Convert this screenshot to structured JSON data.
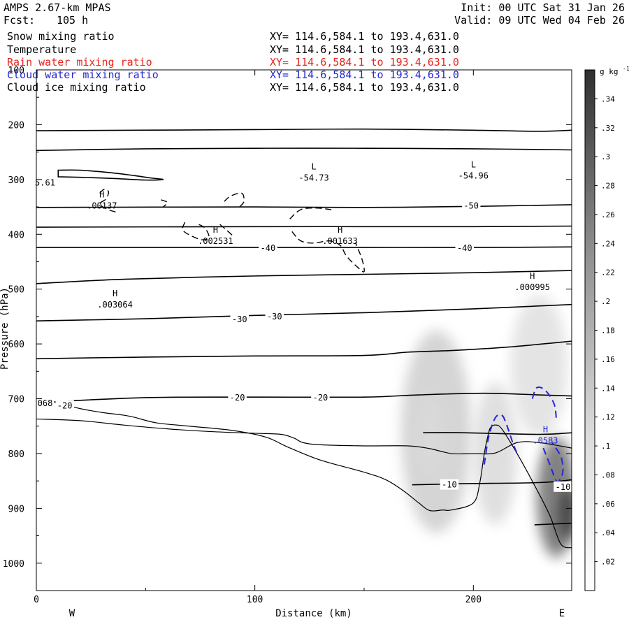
{
  "header": {
    "model": "AMPS 2.67-km MPAS",
    "fcst_label": "Fcst:",
    "fcst_value": "105 h",
    "init": "Init: 00 UTC Sat 31 Jan 26",
    "valid": "Valid: 09 UTC Wed 04 Feb 26"
  },
  "fields": [
    {
      "name": "Snow mixing ratio",
      "xy": "XY= 114.6,584.1 to 193.4,631.0",
      "color": "#000000"
    },
    {
      "name": "Temperature",
      "xy": "XY= 114.6,584.1 to 193.4,631.0",
      "color": "#000000"
    },
    {
      "name": "Rain water mixing ratio",
      "xy": "XY= 114.6,584.1 to 193.4,631.0",
      "color": "#e8241c"
    },
    {
      "name": "Cloud water mixing ratio",
      "xy": "XY= 114.6,584.1 to 193.4,631.0",
      "color": "#2626d6"
    },
    {
      "name": "Cloud ice mixing ratio",
      "xy": "XY= 114.6,584.1 to 193.4,631.0",
      "color": "#000000"
    }
  ],
  "chart_data": {
    "type": "cross-section",
    "xlabel": "Distance (km)",
    "ylabel": "Pressure (hPa)",
    "xlim": [
      0,
      245
    ],
    "ylim": [
      1050,
      100
    ],
    "x_ticks": [
      0,
      100,
      200
    ],
    "y_ticks": [
      200,
      300,
      400,
      500,
      600,
      700,
      800,
      900,
      1000
    ],
    "y_top_label": "100",
    "west_label": "W",
    "east_label": "E",
    "colorbar": {
      "unit": "g kg",
      "unit_exp": "-1",
      "ticks": [
        ".02",
        ".04",
        ".06",
        ".08",
        ".1",
        ".12",
        ".14",
        ".16",
        ".18",
        ".2",
        ".22",
        ".24",
        ".26",
        ".28",
        ".3",
        ".32",
        ".34"
      ],
      "tick_values": [
        0.02,
        0.04,
        0.06,
        0.08,
        0.1,
        0.12,
        0.14,
        0.16,
        0.18,
        0.2,
        0.22,
        0.24,
        0.26,
        0.28,
        0.3,
        0.32,
        0.34
      ],
      "range": [
        0,
        0.36
      ]
    },
    "snow_blobs": [
      {
        "x": 183,
        "p": 760,
        "rx": 16,
        "rp": 185,
        "value": 0.08
      },
      {
        "x": 180,
        "p": 770,
        "rx": 7,
        "rp": 75,
        "value": 0.06
      },
      {
        "x": 210,
        "p": 800,
        "rx": 10,
        "rp": 130,
        "value": 0.06
      },
      {
        "x": 230,
        "p": 640,
        "rx": 13,
        "rp": 130,
        "value": 0.05
      },
      {
        "x": 238,
        "p": 880,
        "rx": 9,
        "rp": 110,
        "value": 0.24
      },
      {
        "x": 243,
        "p": 910,
        "rx": 4,
        "rp": 50,
        "value": 0.32
      }
    ],
    "isotherms": [
      {
        "points": [
          [
            0,
            211
          ],
          [
            100,
            209
          ],
          [
            150,
            208
          ],
          [
            200,
            210
          ],
          [
            230,
            212
          ],
          [
            245,
            210
          ]
        ]
      },
      {
        "points": [
          [
            0,
            247
          ],
          [
            50,
            244
          ],
          [
            100,
            243
          ],
          [
            150,
            243
          ],
          [
            200,
            244
          ],
          [
            245,
            246
          ]
        ]
      },
      {
        "points": [
          [
            0,
            351
          ],
          [
            100,
            350
          ],
          [
            150,
            351
          ],
          [
            200,
            349
          ],
          [
            245,
            346
          ]
        ]
      },
      {
        "points": [
          [
            0,
            387
          ],
          [
            100,
            386
          ],
          [
            150,
            386
          ],
          [
            200,
            386
          ],
          [
            245,
            385
          ]
        ]
      },
      {
        "points": [
          [
            0,
            424
          ],
          [
            100,
            424
          ],
          [
            150,
            424
          ],
          [
            200,
            424
          ],
          [
            245,
            423
          ]
        ]
      },
      {
        "points": [
          [
            0,
            490
          ],
          [
            40,
            482
          ],
          [
            100,
            476
          ],
          [
            150,
            473
          ],
          [
            200,
            470
          ],
          [
            245,
            466
          ]
        ]
      },
      {
        "points": [
          [
            0,
            558
          ],
          [
            50,
            554
          ],
          [
            100,
            548
          ],
          [
            150,
            543
          ],
          [
            200,
            536
          ],
          [
            245,
            528
          ]
        ]
      },
      {
        "points": [
          [
            0,
            627
          ],
          [
            50,
            624
          ],
          [
            100,
            622
          ],
          [
            150,
            621
          ],
          [
            170,
            615
          ],
          [
            190,
            612
          ],
          [
            215,
            606
          ],
          [
            245,
            595
          ]
        ]
      },
      {
        "points": [
          [
            0,
            707
          ],
          [
            50,
            698
          ],
          [
            100,
            697
          ],
          [
            150,
            697
          ],
          [
            175,
            693
          ],
          [
            205,
            690
          ],
          [
            230,
            693
          ],
          [
            245,
            695
          ]
        ]
      },
      {
        "points": [
          [
            172,
            857
          ],
          [
            195,
            855
          ],
          [
            230,
            853
          ],
          [
            245,
            848
          ]
        ]
      },
      {
        "points": [
          [
            228,
            930
          ],
          [
            245,
            927
          ]
        ]
      },
      {
        "points": [
          [
            177,
            762
          ],
          [
            195,
            762
          ],
          [
            230,
            765
          ],
          [
            245,
            762
          ]
        ]
      }
    ],
    "closed_contour": {
      "points": [
        [
          10,
          283
        ],
        [
          20,
          283
        ],
        [
          35,
          288
        ],
        [
          45,
          293
        ],
        [
          52,
          297
        ],
        [
          58,
          300
        ],
        [
          50,
          301
        ],
        [
          35,
          298
        ],
        [
          20,
          296
        ],
        [
          10,
          295
        ]
      ]
    },
    "temp_labels": [
      {
        "x": 106,
        "p": 425,
        "text": "-40"
      },
      {
        "x": 196,
        "p": 425,
        "text": "-40"
      },
      {
        "x": 199,
        "p": 348,
        "text": "-50"
      },
      {
        "x": 93,
        "p": 555,
        "text": "-30"
      },
      {
        "x": 109,
        "p": 550,
        "text": "-30"
      },
      {
        "x": 92,
        "p": 698,
        "text": "-20"
      },
      {
        "x": 130,
        "p": 698,
        "text": "-20"
      },
      {
        "x": 13,
        "p": 713,
        "text": "-20"
      },
      {
        "x": 189,
        "p": 857,
        "text": "-10"
      },
      {
        "x": 241,
        "p": 861,
        "text": "-10"
      },
      {
        "x": 4,
        "p": 306,
        "text": "5.61"
      },
      {
        "x": 4,
        "p": 708,
        "text": "068"
      }
    ],
    "extrema": [
      {
        "x": 127,
        "p": 282,
        "kind": "L",
        "value": "-54.73"
      },
      {
        "x": 200,
        "p": 278,
        "kind": "L",
        "value": "-54.96"
      },
      {
        "x": 30,
        "p": 333,
        "kind": "H",
        "value": ".00137"
      },
      {
        "x": 82,
        "p": 397,
        "kind": "H",
        "value": ".002531"
      },
      {
        "x": 139,
        "p": 397,
        "kind": "H",
        "value": ".001633"
      },
      {
        "x": 36,
        "p": 513,
        "kind": "H",
        "value": ".003064"
      },
      {
        "x": 227,
        "p": 481,
        "kind": "H",
        "value": ".000995"
      }
    ],
    "cloud_water_max": {
      "x": 233,
      "p": 761,
      "kind": "H",
      "value": ".0583"
    },
    "terrain_upper": {
      "points": [
        [
          0,
          737
        ],
        [
          20,
          740
        ],
        [
          40,
          748
        ],
        [
          60,
          755
        ],
        [
          80,
          760
        ],
        [
          100,
          763
        ],
        [
          112,
          765
        ],
        [
          118,
          772
        ],
        [
          122,
          780
        ],
        [
          130,
          784
        ],
        [
          150,
          786
        ],
        [
          170,
          786
        ],
        [
          180,
          791
        ],
        [
          190,
          800
        ],
        [
          200,
          800
        ],
        [
          210,
          799
        ],
        [
          220,
          780
        ],
        [
          230,
          780
        ],
        [
          245,
          790
        ]
      ]
    },
    "terrain_lower": {
      "points": [
        [
          0,
          701
        ],
        [
          10,
          708
        ],
        [
          20,
          718
        ],
        [
          30,
          725
        ],
        [
          40,
          730
        ],
        [
          45,
          734
        ],
        [
          55,
          744
        ],
        [
          70,
          750
        ],
        [
          90,
          758
        ],
        [
          105,
          770
        ],
        [
          115,
          788
        ],
        [
          130,
          812
        ],
        [
          150,
          834
        ],
        [
          160,
          848
        ],
        [
          168,
          868
        ],
        [
          175,
          890
        ],
        [
          180,
          904
        ],
        [
          186,
          903
        ],
        [
          190,
          903
        ],
        [
          200,
          890
        ],
        [
          203,
          852
        ],
        [
          205,
          800
        ],
        [
          207,
          762
        ],
        [
          208,
          752
        ],
        [
          210,
          748
        ],
        [
          213,
          755
        ],
        [
          220,
          800
        ],
        [
          228,
          858
        ],
        [
          235,
          913
        ],
        [
          240,
          965
        ],
        [
          245,
          972
        ]
      ]
    },
    "ice_contours": [
      {
        "points": [
          [
            29,
            325
          ],
          [
            31,
            318
          ],
          [
            33,
            322
          ],
          [
            32,
            335
          ],
          [
            29,
            345
          ],
          [
            33,
            355
          ],
          [
            37,
            360
          ]
        ]
      },
      {
        "points": [
          [
            57,
            337
          ],
          [
            60,
            342
          ],
          [
            58,
            350
          ]
        ]
      },
      {
        "points": [
          [
            68,
            378
          ],
          [
            67,
            392
          ],
          [
            71,
            403
          ],
          [
            76,
            410
          ],
          [
            79,
            405
          ],
          [
            77,
            388
          ],
          [
            73,
            380
          ]
        ]
      },
      {
        "points": [
          [
            84,
            382
          ],
          [
            87,
            392
          ],
          [
            90,
            403
          ]
        ]
      },
      {
        "points": [
          [
            86,
            340
          ],
          [
            89,
            330
          ],
          [
            94,
            325
          ],
          [
            95,
            340
          ],
          [
            93,
            350
          ]
        ]
      },
      {
        "points": [
          [
            116,
            372
          ],
          [
            121,
            355
          ],
          [
            128,
            352
          ],
          [
            135,
            355
          ]
        ]
      },
      {
        "points": [
          [
            117,
            395
          ],
          [
            121,
            412
          ],
          [
            127,
            416
          ],
          [
            134,
            412
          ],
          [
            139,
            420
          ],
          [
            142,
            440
          ],
          [
            147,
            460
          ],
          [
            150,
            468
          ],
          [
            149,
            445
          ],
          [
            146,
            415
          ]
        ]
      }
    ],
    "cloud_water_contours": [
      {
        "points": [
          [
            205,
            820
          ],
          [
            207,
            770
          ],
          [
            210,
            735
          ],
          [
            213,
            730
          ],
          [
            215,
            745
          ],
          [
            218,
            780
          ],
          [
            220,
            800
          ]
        ]
      },
      {
        "points": [
          [
            227,
            700
          ],
          [
            229,
            680
          ],
          [
            233,
            685
          ],
          [
            237,
            710
          ],
          [
            238,
            740
          ]
        ]
      },
      {
        "points": [
          [
            232,
            790
          ],
          [
            235,
            820
          ],
          [
            238,
            850
          ],
          [
            240,
            845
          ],
          [
            241,
            830
          ],
          [
            240,
            805
          ],
          [
            236,
            780
          ]
        ]
      }
    ]
  }
}
